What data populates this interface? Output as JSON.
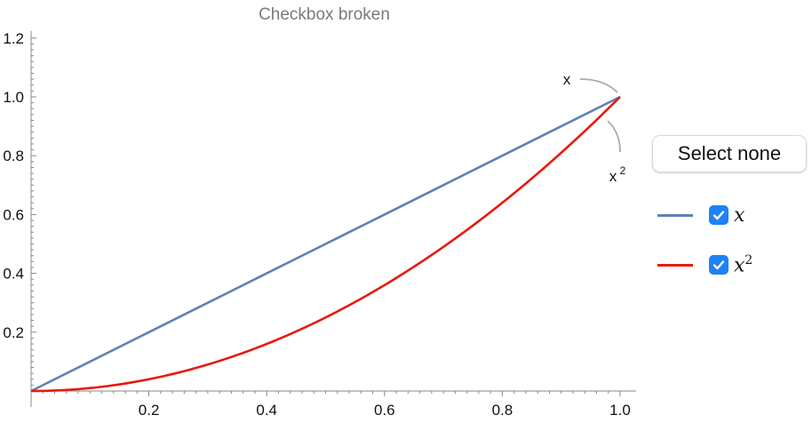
{
  "title": "Checkbox broken",
  "select_none_label": "Select none",
  "colors": {
    "x": "#5f81b5",
    "x2": "#e8190d",
    "axis": "#888888",
    "checkbox": "#1e82f5"
  },
  "legend": [
    {
      "label": "x",
      "exponent": "",
      "checked": true,
      "color": "#5f81b5"
    },
    {
      "label": "x",
      "exponent": "2",
      "checked": true,
      "color": "#e8190d"
    }
  ],
  "curve_labels": [
    {
      "label": "x",
      "exponent": ""
    },
    {
      "label": "x",
      "exponent": "2"
    }
  ],
  "chart_data": {
    "type": "line",
    "title": "Checkbox broken",
    "xlim": [
      0,
      1
    ],
    "ylim": [
      0,
      1.2
    ],
    "x_ticks": [
      "0.2",
      "0.4",
      "0.6",
      "0.8",
      "1.0"
    ],
    "y_ticks": [
      "0.2",
      "0.4",
      "0.6",
      "0.8",
      "1.0",
      "1.2"
    ],
    "series": [
      {
        "name": "x",
        "x": [
          0,
          0.1,
          0.2,
          0.3,
          0.4,
          0.5,
          0.6,
          0.7,
          0.8,
          0.9,
          1.0
        ],
        "y": [
          0,
          0.1,
          0.2,
          0.3,
          0.4,
          0.5,
          0.6,
          0.7,
          0.8,
          0.9,
          1.0
        ]
      },
      {
        "name": "x^2",
        "x": [
          0,
          0.1,
          0.2,
          0.3,
          0.4,
          0.5,
          0.6,
          0.7,
          0.8,
          0.9,
          1.0
        ],
        "y": [
          0,
          0.01,
          0.04,
          0.09,
          0.16,
          0.25,
          0.36,
          0.49,
          0.64,
          0.81,
          1.0
        ]
      }
    ],
    "grid": false,
    "legend_position": "right"
  }
}
